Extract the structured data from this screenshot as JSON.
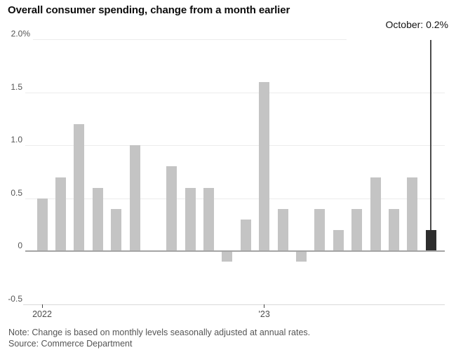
{
  "title": "Overall consumer spending, change from a month earlier",
  "annotation": {
    "label": "October: 0.2%"
  },
  "axes": {
    "y_ticks": [
      {
        "value": 2.0,
        "label": "2.0%"
      },
      {
        "value": 1.5,
        "label": "1.5"
      },
      {
        "value": 1.0,
        "label": "1.0"
      },
      {
        "value": 0.5,
        "label": "0.5"
      },
      {
        "value": 0,
        "label": "0"
      },
      {
        "value": -0.5,
        "label": "-0.5"
      }
    ],
    "x_ticks": [
      {
        "label": "2022",
        "month_index": 0
      },
      {
        "label": "'23",
        "month_index": 12
      }
    ]
  },
  "chart_data": {
    "type": "bar",
    "title": "Overall consumer spending, change from a month earlier",
    "unit": "percent, change from a month earlier",
    "ylim": [
      -0.5,
      2.0
    ],
    "grid": true,
    "legend": "none",
    "categories": [
      "Jan 2022",
      "Feb 2022",
      "Mar 2022",
      "Apr 2022",
      "May 2022",
      "Jun 2022",
      "Jul 2022",
      "Aug 2022",
      "Sep 2022",
      "Oct 2022",
      "Nov 2022",
      "Dec 2022",
      "Jan 2023",
      "Feb 2023",
      "Mar 2023",
      "Apr 2023",
      "May 2023",
      "Jun 2023",
      "Jul 2023",
      "Aug 2023",
      "Sep 2023",
      "Oct 2023"
    ],
    "values": [
      0.5,
      0.7,
      1.2,
      0.6,
      0.4,
      1.0,
      0.0,
      0.8,
      0.6,
      0.6,
      -0.1,
      0.3,
      1.6,
      0.4,
      -0.1,
      0.4,
      0.2,
      0.4,
      0.7,
      0.4,
      0.7,
      0.2
    ],
    "highlight": {
      "index": 21,
      "category": "Oct 2023",
      "value": 0.2,
      "label": "October: 0.2%"
    },
    "bar_color": "#c4c4c4",
    "highlight_color": "#2e2e2e"
  },
  "footer": {
    "note": "Note: Change is based on monthly levels seasonally adjusted at annual rates.",
    "source": "Source: Commerce Department"
  }
}
